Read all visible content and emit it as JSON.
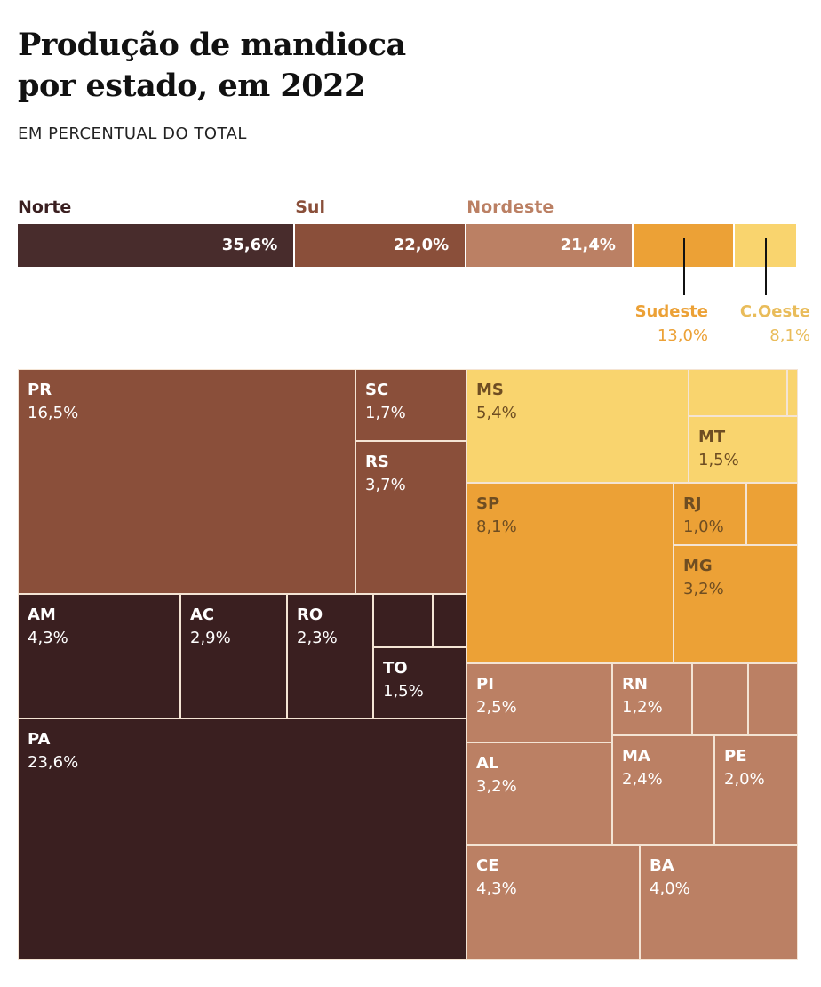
{
  "title_line1": "Produção de mandioca",
  "title_line2": "por estado, em 2022",
  "subtitle": "EM PERCENTUAL DO TOTAL",
  "colors": {
    "Norte": "#3a1f20",
    "Sul": "#8a4f3a",
    "Nordeste": "#bb8064",
    "Sudeste": "#eca136",
    "C.Oeste": "#f9d46e",
    "dark_text": "#6e4d22",
    "bar_Norte": "#482c2c"
  },
  "chart_data": {
    "type": "treemap",
    "title": "Produção de mandioca por estado, em 2022",
    "subtitle": "EM PERCENTUAL DO TOTAL",
    "unit": "%",
    "regions": [
      {
        "name": "Norte",
        "value": 35.6,
        "label": "35,6%"
      },
      {
        "name": "Sul",
        "value": 22.0,
        "label": "22,0%"
      },
      {
        "name": "Nordeste",
        "value": 21.4,
        "label": "21,4%"
      },
      {
        "name": "Sudeste",
        "value": 13.0,
        "label": "13,0%"
      },
      {
        "name": "C.Oeste",
        "value": 8.1,
        "label": "8,1%"
      }
    ],
    "states": [
      {
        "region": "Sul",
        "state": "PR",
        "value": 16.5,
        "label": "16,5%"
      },
      {
        "region": "Sul",
        "state": "SC",
        "value": 1.7,
        "label": "1,7%"
      },
      {
        "region": "Sul",
        "state": "RS",
        "value": 3.7,
        "label": "3,7%"
      },
      {
        "region": "Norte",
        "state": "AM",
        "value": 4.3,
        "label": "4,3%"
      },
      {
        "region": "Norte",
        "state": "AC",
        "value": 2.9,
        "label": "2,9%"
      },
      {
        "region": "Norte",
        "state": "RO",
        "value": 2.3,
        "label": "2,3%"
      },
      {
        "region": "Norte",
        "state": "TO",
        "value": 1.5,
        "label": "1,5%"
      },
      {
        "region": "Norte",
        "state": "PA",
        "value": 23.6,
        "label": "23,6%"
      },
      {
        "region": "Norte",
        "state": "",
        "value": null,
        "label": ""
      },
      {
        "region": "Norte",
        "state": "",
        "value": null,
        "label": ""
      },
      {
        "region": "C.Oeste",
        "state": "MS",
        "value": 5.4,
        "label": "5,4%"
      },
      {
        "region": "C.Oeste",
        "state": "MT",
        "value": 1.5,
        "label": "1,5%"
      },
      {
        "region": "C.Oeste",
        "state": "",
        "value": null,
        "label": ""
      },
      {
        "region": "C.Oeste",
        "state": "",
        "value": null,
        "label": ""
      },
      {
        "region": "Sudeste",
        "state": "SP",
        "value": 8.1,
        "label": "8,1%"
      },
      {
        "region": "Sudeste",
        "state": "RJ",
        "value": 1.0,
        "label": "1,0%"
      },
      {
        "region": "Sudeste",
        "state": "MG",
        "value": 3.2,
        "label": "3,2%"
      },
      {
        "region": "Sudeste",
        "state": "",
        "value": null,
        "label": ""
      },
      {
        "region": "Nordeste",
        "state": "PI",
        "value": 2.5,
        "label": "2,5%"
      },
      {
        "region": "Nordeste",
        "state": "RN",
        "value": 1.2,
        "label": "1,2%"
      },
      {
        "region": "Nordeste",
        "state": "AL",
        "value": 3.2,
        "label": "3,2%"
      },
      {
        "region": "Nordeste",
        "state": "MA",
        "value": 2.4,
        "label": "2,4%"
      },
      {
        "region": "Nordeste",
        "state": "PE",
        "value": 2.0,
        "label": "2,0%"
      },
      {
        "region": "Nordeste",
        "state": "CE",
        "value": 4.3,
        "label": "4,3%"
      },
      {
        "region": "Nordeste",
        "state": "BA",
        "value": 4.0,
        "label": "4,0%"
      },
      {
        "region": "Nordeste",
        "state": "",
        "value": null,
        "label": ""
      },
      {
        "region": "Nordeste",
        "state": "",
        "value": null,
        "label": ""
      }
    ]
  }
}
